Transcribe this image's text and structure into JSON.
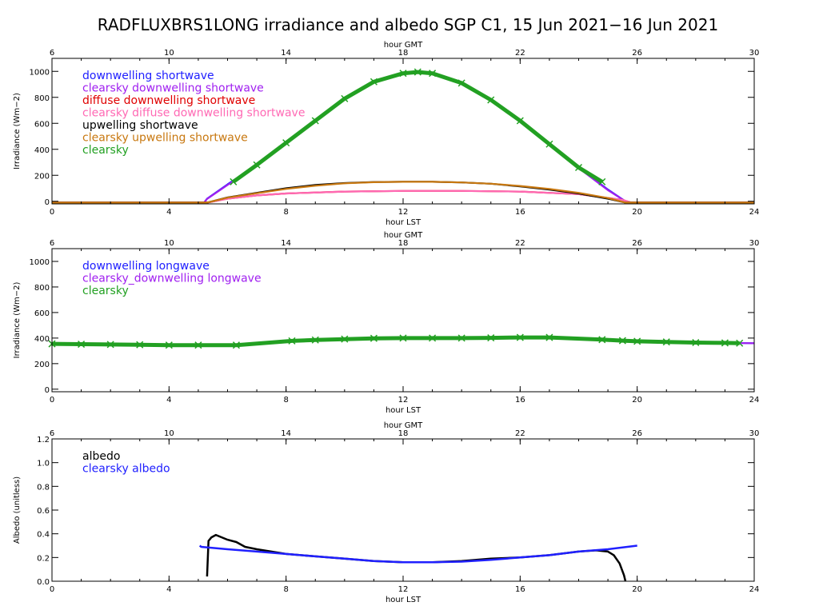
{
  "title": "RADFLUXBRS1LONG irradiance and albedo SGP C1, 15 Jun 2021−16 Jun 2021",
  "colors": {
    "downwelling": "#2020ff",
    "clearsky_downwelling": "#a020f0",
    "diffuse": "#e00000",
    "clearsky_diffuse": "#ff69b4",
    "upwelling": "#000000",
    "clearsky_upwelling": "#c87810",
    "clearsky": "#22a022"
  },
  "chart_data": [
    {
      "type": "line",
      "xlabel": "hour LST",
      "x2label": "hour GMT",
      "ylabel": "Irradiance (Wm−2)",
      "xlim": [
        0,
        24
      ],
      "x2lim": [
        6,
        30
      ],
      "ylim": [
        -20,
        1100
      ],
      "xticks": [
        0,
        4,
        8,
        12,
        16,
        20,
        24
      ],
      "x2ticks": [
        6,
        10,
        14,
        18,
        22,
        26,
        30
      ],
      "yticks": [
        0,
        200,
        400,
        600,
        800,
        1000
      ],
      "legend_position": "top-left",
      "series": [
        {
          "name": "downwelling shortwave",
          "color_key": "downwelling",
          "x": [
            0,
            5.2,
            5.3,
            6,
            7,
            8,
            9,
            10,
            11,
            12,
            12.5,
            13,
            14,
            15,
            16,
            17,
            18,
            19,
            19.6,
            19.8,
            24
          ],
          "values": [
            -10,
            -10,
            20,
            130,
            280,
            450,
            620,
            790,
            920,
            985,
            995,
            985,
            910,
            780,
            620,
            440,
            260,
            90,
            0,
            -10,
            -10
          ]
        },
        {
          "name": "clearsky downwelling shortwave",
          "color_key": "clearsky_downwelling",
          "x": [
            0,
            5.2,
            5.3,
            6,
            7,
            8,
            9,
            10,
            11,
            12,
            12.5,
            13,
            14,
            15,
            16,
            17,
            18,
            19,
            19.6,
            19.8,
            24
          ],
          "values": [
            -10,
            -10,
            18,
            125,
            275,
            445,
            615,
            785,
            915,
            980,
            990,
            980,
            905,
            775,
            615,
            435,
            255,
            85,
            0,
            -10,
            -10
          ]
        },
        {
          "name": "diffuse downwelling shortwave",
          "color_key": "diffuse",
          "x": [
            0,
            5.3,
            6,
            7,
            8,
            10,
            12,
            14,
            16,
            18,
            19.5,
            19.8,
            24
          ],
          "values": [
            -10,
            -10,
            20,
            45,
            60,
            75,
            80,
            80,
            75,
            55,
            10,
            -10,
            -10
          ]
        },
        {
          "name": "clearsky diffuse downwelling shortwave",
          "color_key": "clearsky_diffuse",
          "x": [
            0,
            5.3,
            6,
            7,
            8,
            10,
            12,
            14,
            16,
            18,
            19.5,
            19.8,
            24
          ],
          "values": [
            -10,
            -10,
            20,
            45,
            60,
            75,
            80,
            80,
            75,
            55,
            10,
            -10,
            -10
          ]
        },
        {
          "name": "upwelling shortwave",
          "color_key": "upwelling",
          "x": [
            0,
            5.3,
            6,
            7,
            8,
            9,
            10,
            11,
            12,
            13,
            14,
            15,
            16,
            17,
            18,
            19,
            19.6,
            24
          ],
          "values": [
            -10,
            -10,
            30,
            65,
            100,
            125,
            140,
            148,
            150,
            150,
            145,
            135,
            115,
            90,
            60,
            20,
            -10,
            -10
          ]
        },
        {
          "name": "clearsky upwelling shortwave",
          "color_key": "clearsky_upwelling",
          "x": [
            0,
            5.3,
            6,
            7,
            8,
            9,
            10,
            11,
            12,
            13,
            14,
            15,
            16,
            17,
            18,
            19,
            19.6,
            24
          ],
          "values": [
            -10,
            -10,
            28,
            62,
            95,
            120,
            138,
            147,
            150,
            150,
            145,
            135,
            118,
            95,
            65,
            25,
            -10,
            -10
          ]
        },
        {
          "name": "clearsky",
          "color_key": "clearsky",
          "marker": "x",
          "x": [
            6.2,
            7,
            8,
            9,
            10,
            11,
            12,
            12.5,
            13,
            14,
            15,
            16,
            17,
            18,
            18.8
          ],
          "values": [
            150,
            280,
            450,
            620,
            790,
            920,
            985,
            995,
            985,
            910,
            780,
            620,
            440,
            260,
            150
          ]
        }
      ]
    },
    {
      "type": "line",
      "xlabel": "hour LST",
      "x2label": "hour GMT",
      "ylabel": "Irradiance (Wm−2)",
      "xlim": [
        0,
        24
      ],
      "x2lim": [
        6,
        30
      ],
      "ylim": [
        -20,
        1100
      ],
      "xticks": [
        0,
        4,
        8,
        12,
        16,
        20,
        24
      ],
      "x2ticks": [
        6,
        10,
        14,
        18,
        22,
        26,
        30
      ],
      "yticks": [
        0,
        200,
        400,
        600,
        800,
        1000
      ],
      "legend_position": "top-left",
      "series": [
        {
          "name": "downwelling longwave",
          "color_key": "downwelling",
          "x": [
            0,
            2,
            4,
            6,
            6.5,
            8,
            10,
            12,
            14,
            16,
            17,
            18,
            19,
            20,
            22,
            24
          ],
          "values": [
            355,
            350,
            345,
            345,
            350,
            370,
            390,
            400,
            400,
            405,
            405,
            395,
            385,
            375,
            365,
            360
          ]
        },
        {
          "name": "clearsky_downwelling longwave",
          "color_key": "clearsky_downwelling",
          "x": [
            0,
            2,
            4,
            6,
            6.5,
            8,
            10,
            12,
            14,
            16,
            17,
            18,
            19,
            20,
            22,
            24
          ],
          "values": [
            355,
            350,
            345,
            345,
            350,
            370,
            390,
            400,
            400,
            405,
            405,
            395,
            385,
            375,
            365,
            360
          ]
        },
        {
          "name": "clearsky",
          "color_key": "clearsky",
          "marker": "x",
          "x": [
            0,
            1,
            2,
            3,
            4,
            5,
            6.3,
            8.2,
            9,
            10,
            11,
            12,
            13,
            14,
            15,
            16,
            17,
            18.8,
            19.5,
            20,
            21,
            22,
            23,
            23.5
          ],
          "values": [
            355,
            352,
            350,
            348,
            345,
            345,
            345,
            378,
            385,
            392,
            398,
            400,
            400,
            400,
            402,
            405,
            405,
            388,
            380,
            375,
            370,
            365,
            362,
            360
          ]
        }
      ]
    },
    {
      "type": "line",
      "xlabel": "hour LST",
      "x2label": "hour GMT",
      "ylabel": "Albedo (unitless)",
      "xlim": [
        0,
        24
      ],
      "x2lim": [
        6,
        30
      ],
      "ylim": [
        0,
        1.2
      ],
      "xticks": [
        0,
        4,
        8,
        12,
        16,
        20,
        24
      ],
      "x2ticks": [
        6,
        10,
        14,
        18,
        22,
        26,
        30
      ],
      "yticks": [
        0.0,
        0.2,
        0.4,
        0.6,
        0.8,
        1.0,
        1.2
      ],
      "yticklabels": [
        "0.0",
        "0.2",
        "0.4",
        "0.6",
        "0.8",
        "1.0",
        "1.2"
      ],
      "legend_position": "top-left",
      "series": [
        {
          "name": "albedo",
          "color_key": "upwelling",
          "x": [
            5.3,
            5.35,
            5.45,
            5.6,
            5.8,
            6.0,
            6.3,
            6.6,
            7.0,
            8,
            9,
            10,
            11,
            12,
            13,
            14,
            15,
            16,
            17,
            18,
            18.6,
            19.0,
            19.2,
            19.4,
            19.55,
            19.6
          ],
          "values": [
            0.04,
            0.34,
            0.37,
            0.39,
            0.37,
            0.35,
            0.33,
            0.29,
            0.27,
            0.23,
            0.21,
            0.19,
            0.17,
            0.16,
            0.16,
            0.17,
            0.19,
            0.2,
            0.22,
            0.25,
            0.26,
            0.25,
            0.22,
            0.15,
            0.05,
            0.0
          ]
        },
        {
          "name": "clearsky albedo",
          "color_key": "downwelling",
          "x": [
            5.05,
            5.1,
            6,
            7,
            8,
            9,
            10,
            11,
            12,
            13,
            14,
            15,
            16,
            17,
            18,
            19,
            20
          ],
          "values": [
            0.3,
            0.29,
            0.27,
            0.25,
            0.23,
            0.21,
            0.19,
            0.17,
            0.16,
            0.16,
            0.165,
            0.18,
            0.2,
            0.22,
            0.25,
            0.27,
            0.3
          ]
        }
      ]
    }
  ]
}
